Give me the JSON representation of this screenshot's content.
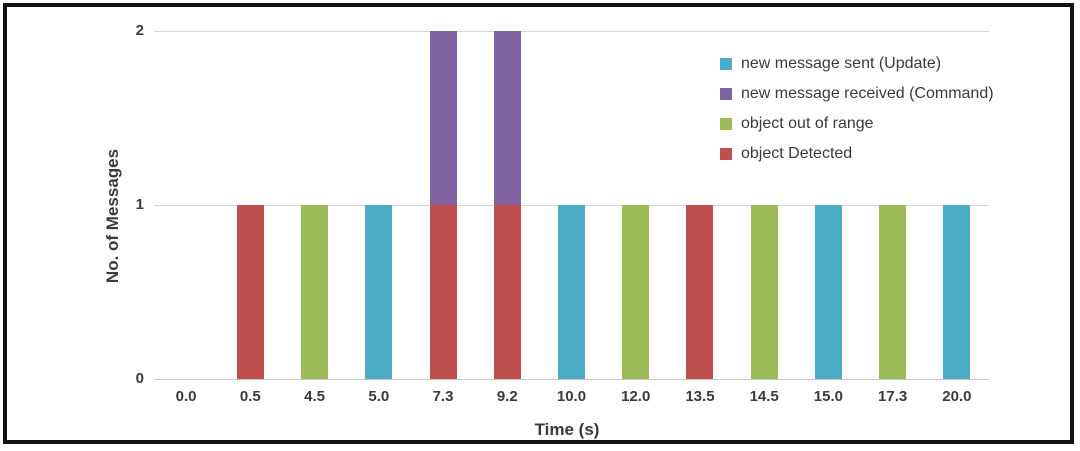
{
  "chart_data": {
    "type": "bar",
    "stacked": true,
    "title": "",
    "xlabel": "Time (s)",
    "ylabel": "No. of Messages",
    "categories": [
      "0.0",
      "0.5",
      "4.5",
      "5.0",
      "7.3",
      "9.2",
      "10.0",
      "12.0",
      "13.5",
      "14.5",
      "15.0",
      "17.3",
      "20.0"
    ],
    "series": [
      {
        "name": "new message sent (Update)",
        "color": "#4BACC6",
        "values": [
          0,
          0,
          0,
          1,
          0,
          0,
          1,
          0,
          0,
          0,
          1,
          0,
          1
        ]
      },
      {
        "name": "new message received (Command)",
        "color": "#8064A2",
        "values": [
          0,
          0,
          0,
          0,
          1,
          1,
          0,
          0,
          0,
          0,
          0,
          0,
          0
        ]
      },
      {
        "name": "object out of range",
        "color": "#9BBB59",
        "values": [
          0,
          0,
          1,
          0,
          0,
          0,
          0,
          1,
          0,
          1,
          0,
          1,
          0
        ]
      },
      {
        "name": "object Detected",
        "color": "#C0504D",
        "values": [
          0,
          1,
          0,
          0,
          1,
          1,
          0,
          0,
          1,
          0,
          0,
          0,
          0
        ]
      }
    ],
    "ylim": [
      0,
      2
    ],
    "yticks": [
      "0",
      "1",
      "2"
    ],
    "grid": "horizontal",
    "legend_position": "top-right",
    "colors": {
      "gridline": "#d6d6d6",
      "axis_text": "#3a3a3a",
      "frame_border": "#121212"
    }
  }
}
